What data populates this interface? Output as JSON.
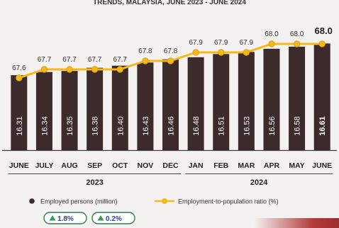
{
  "header": {
    "partial_title": "TRENDS, MALAYSIA, JUNE 2023 - JUNE 2024"
  },
  "chart_data": {
    "type": "bar",
    "categories": [
      "JUNE",
      "JULY",
      "AUG",
      "SEP",
      "OCT",
      "NOV",
      "DEC",
      "JAN",
      "FEB",
      "MAR",
      "APR",
      "MAY",
      "JUNE"
    ],
    "year_groups": [
      {
        "label": "2023",
        "from": 0,
        "to": 6
      },
      {
        "label": "2024",
        "from": 7,
        "to": 12
      }
    ],
    "series": [
      {
        "name": "Employed persons (million)",
        "type": "bar",
        "values": [
          16.31,
          16.34,
          16.35,
          16.38,
          16.4,
          16.43,
          16.46,
          16.48,
          16.51,
          16.53,
          16.56,
          16.58,
          16.61
        ],
        "labels": [
          "16.31",
          "16.34",
          "16.35",
          "16.38",
          "16.40",
          "16.43",
          "16.46",
          "16.48",
          "16.51",
          "16.53",
          "16.56",
          "16.58",
          "16.61"
        ],
        "color": "#3d2a2b"
      },
      {
        "name": "Employment-to-population ratio (%)",
        "type": "line",
        "values": [
          67.6,
          67.7,
          67.7,
          67.7,
          67.7,
          67.8,
          67.8,
          67.9,
          67.9,
          67.9,
          68.0,
          68.0,
          68.0
        ],
        "labels": [
          "67.6",
          "67.7",
          "67.7",
          "67.7",
          "67.7",
          "67.8",
          "67.8",
          "67.9",
          "67.9",
          "67.9",
          "68.0",
          "68.0",
          "68.0"
        ],
        "color": "#f2b81c"
      }
    ],
    "bar_ylim": [
      15.6,
      16.7
    ],
    "line_ylim": [
      67.0,
      68.2
    ],
    "legend": {
      "placement": "bottom",
      "badges": [
        {
          "text": "1.8%",
          "direction": "up"
        },
        {
          "text": "0.2%",
          "direction": "up"
        }
      ]
    },
    "colors": {
      "bar": "#3d2a2b",
      "line": "#f2b81c",
      "badge_border": "#2e7d4f",
      "badge_arrow": "#2e9e4f",
      "badge_text": "#2a3f8f",
      "year_rule": "#444444"
    }
  }
}
